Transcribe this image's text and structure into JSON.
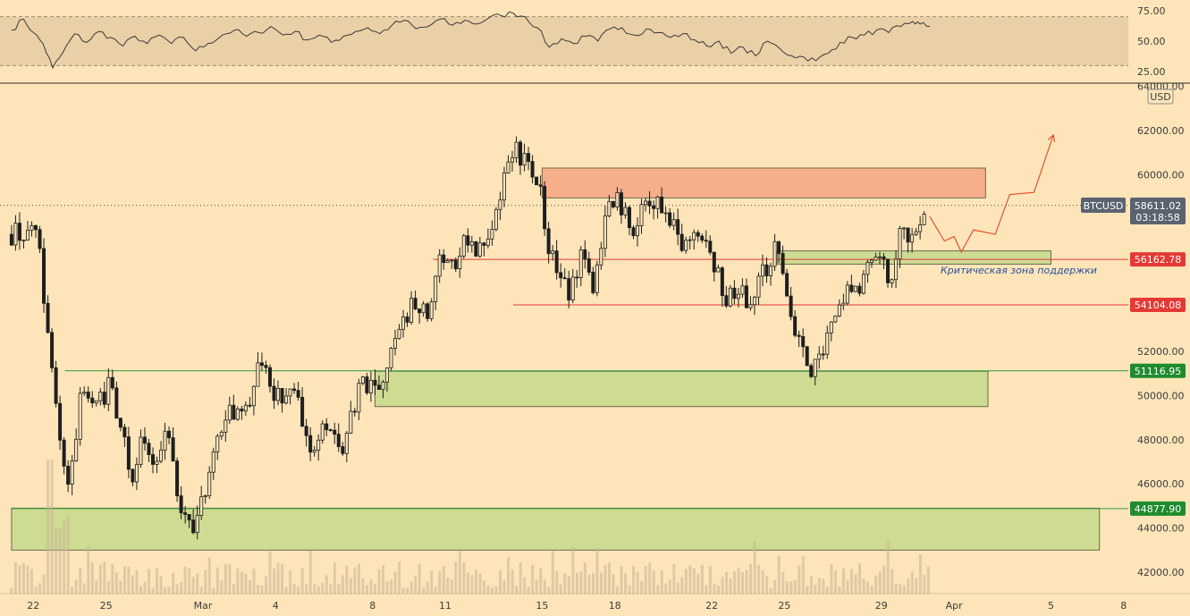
{
  "chart_data": {
    "type": "candlestick",
    "symbol": "BTCUSD",
    "currency": "USD",
    "countdown": "03:18:58",
    "last_price": "58611.02",
    "y_range": [
      41000,
      64000
    ],
    "y_ticks": [
      "64000.00",
      "62000.00",
      "60000.00",
      "58000.00",
      "56000.00",
      "54000.00",
      "52000.00",
      "50000.00",
      "48000.00",
      "46000.00",
      "44000.00",
      "42000.00"
    ],
    "x_ticks": [
      {
        "label": "22",
        "day": -7
      },
      {
        "label": "25",
        "day": -4
      },
      {
        "label": "Mar",
        "day": 0
      },
      {
        "label": "4",
        "day": 3
      },
      {
        "label": "8",
        "day": 7
      },
      {
        "label": "11",
        "day": 10
      },
      {
        "label": "15",
        "day": 14
      },
      {
        "label": "18",
        "day": 17
      },
      {
        "label": "22",
        "day": 21
      },
      {
        "label": "25",
        "day": 24
      },
      {
        "label": "29",
        "day": 28
      },
      {
        "label": "Apr",
        "day": 31
      },
      {
        "label": "5",
        "day": 35
      },
      {
        "label": "8",
        "day": 38
      }
    ],
    "price_tags": [
      {
        "value": 56162.78,
        "label": "56162.78",
        "color": "#e53935"
      },
      {
        "value": 54104.08,
        "label": "54104.08",
        "color": "#e53935"
      },
      {
        "value": 51116.95,
        "label": "51116.95",
        "color": "#1f8c2e"
      },
      {
        "value": 44877.9,
        "label": "44877.90",
        "color": "#1f8c2e"
      }
    ],
    "zones": [
      {
        "kind": "resistance",
        "from_day": 14.0,
        "to_day": 32.3,
        "low": 58950,
        "high": 60300,
        "color": "#f4a582"
      },
      {
        "kind": "support",
        "from_day": 23.7,
        "to_day": 35.0,
        "low": 55950,
        "high": 56550,
        "color": "#c5d98b"
      },
      {
        "kind": "support",
        "from_day": 7.1,
        "to_day": 32.4,
        "low": 49500,
        "high": 51100,
        "color": "#c5d98b"
      },
      {
        "kind": "support",
        "from_day": -7.9,
        "to_day": 37.0,
        "low": 43000,
        "high": 44900,
        "color": "#c5d98b"
      }
    ],
    "level_lines": [
      {
        "value": 56162.78,
        "from_day": 9.5,
        "color": "#e53935"
      },
      {
        "value": 54104.08,
        "from_day": 12.8,
        "color": "#e53935"
      },
      {
        "value": 51116.95,
        "from_day": -5.7,
        "color": "#2e9b3e"
      },
      {
        "value": 44877.9,
        "from_day": -7.9,
        "color": "#2e9b3e"
      }
    ],
    "annotation": "Критическая зона поддержки",
    "projection": [
      {
        "day": 30.0,
        "value": 58100
      },
      {
        "day": 30.6,
        "value": 57000
      },
      {
        "day": 31.0,
        "value": 57200
      },
      {
        "day": 31.3,
        "value": 56500
      },
      {
        "day": 31.8,
        "value": 57500
      },
      {
        "day": 32.7,
        "value": 57300
      },
      {
        "day": 33.3,
        "value": 59100
      },
      {
        "day": 34.3,
        "value": 59200
      },
      {
        "day": 35.1,
        "value": 61800
      }
    ],
    "anchors": [
      [
        -7.9,
        57300
      ],
      [
        -7.0,
        57700
      ],
      [
        -6.7,
        56000
      ],
      [
        -6.0,
        48500
      ],
      [
        -5.5,
        45600
      ],
      [
        -5.0,
        50800
      ],
      [
        -4.4,
        49500
      ],
      [
        -3.8,
        50500
      ],
      [
        -3.4,
        48700
      ],
      [
        -2.9,
        46300
      ],
      [
        -2.5,
        48100
      ],
      [
        -2.1,
        47000
      ],
      [
        -1.5,
        48200
      ],
      [
        -0.9,
        44700
      ],
      [
        -0.4,
        43700
      ],
      [
        0.3,
        46500
      ],
      [
        0.9,
        49400
      ],
      [
        1.6,
        48900
      ],
      [
        2.4,
        51500
      ],
      [
        3.0,
        49900
      ],
      [
        3.8,
        50200
      ],
      [
        4.4,
        47500
      ],
      [
        5.1,
        48800
      ],
      [
        5.8,
        47600
      ],
      [
        6.5,
        50500
      ],
      [
        7.3,
        50700
      ],
      [
        8.0,
        52600
      ],
      [
        8.7,
        54400
      ],
      [
        9.3,
        53600
      ],
      [
        9.8,
        56200
      ],
      [
        10.4,
        56000
      ],
      [
        10.8,
        57400
      ],
      [
        11.3,
        56400
      ],
      [
        11.9,
        57000
      ],
      [
        12.5,
        60100
      ],
      [
        12.9,
        61300
      ],
      [
        13.4,
        60200
      ],
      [
        13.9,
        59400
      ],
      [
        14.3,
        56500
      ],
      [
        14.7,
        55300
      ],
      [
        15.2,
        54700
      ],
      [
        15.6,
        56200
      ],
      [
        16.1,
        55000
      ],
      [
        16.6,
        58200
      ],
      [
        17.2,
        58800
      ],
      [
        17.7,
        57200
      ],
      [
        18.2,
        58900
      ],
      [
        18.8,
        58600
      ],
      [
        19.4,
        57600
      ],
      [
        20.0,
        56700
      ],
      [
        20.6,
        57400
      ],
      [
        21.1,
        56000
      ],
      [
        21.6,
        54200
      ],
      [
        22.1,
        54800
      ],
      [
        22.6,
        54200
      ],
      [
        23.1,
        55600
      ],
      [
        23.7,
        56700
      ],
      [
        24.2,
        53800
      ],
      [
        24.7,
        51900
      ],
      [
        25.2,
        51200
      ],
      [
        25.8,
        52600
      ],
      [
        26.4,
        54300
      ],
      [
        26.9,
        54800
      ],
      [
        27.5,
        55700
      ],
      [
        28.1,
        55900
      ],
      [
        28.4,
        55200
      ],
      [
        28.8,
        57600
      ],
      [
        29.2,
        57300
      ],
      [
        29.6,
        58000
      ],
      [
        29.9,
        58600
      ]
    ],
    "rsi": {
      "levels": [
        "75.00",
        "50.00",
        "25.00"
      ],
      "band_upper": 70,
      "band_lower": 30,
      "range": [
        20,
        80
      ],
      "anchors": [
        [
          -7.9,
          59
        ],
        [
          -7.4,
          68
        ],
        [
          -7.0,
          57
        ],
        [
          -6.6,
          48
        ],
        [
          -6.2,
          28
        ],
        [
          -5.8,
          40
        ],
        [
          -5.3,
          56
        ],
        [
          -4.8,
          49
        ],
        [
          -4.3,
          58
        ],
        [
          -3.8,
          53
        ],
        [
          -3.3,
          46
        ],
        [
          -2.8,
          54
        ],
        [
          -2.3,
          48
        ],
        [
          -1.8,
          55
        ],
        [
          -1.3,
          48
        ],
        [
          -0.8,
          53
        ],
        [
          -0.3,
          42
        ],
        [
          0.2,
          48
        ],
        [
          0.8,
          55
        ],
        [
          1.3,
          59
        ],
        [
          1.8,
          54
        ],
        [
          2.3,
          57
        ],
        [
          2.8,
          62
        ],
        [
          3.3,
          55
        ],
        [
          3.8,
          58
        ],
        [
          4.3,
          51
        ],
        [
          4.8,
          55
        ],
        [
          5.3,
          49
        ],
        [
          5.8,
          54
        ],
        [
          6.3,
          58
        ],
        [
          6.8,
          61
        ],
        [
          7.3,
          56
        ],
        [
          7.8,
          63
        ],
        [
          8.3,
          67
        ],
        [
          8.8,
          60
        ],
        [
          9.3,
          62
        ],
        [
          9.8,
          68
        ],
        [
          10.3,
          63
        ],
        [
          10.8,
          67
        ],
        [
          11.3,
          64
        ],
        [
          11.8,
          69
        ],
        [
          12.3,
          71
        ],
        [
          12.8,
          73
        ],
        [
          13.3,
          70
        ],
        [
          13.8,
          61
        ],
        [
          14.3,
          45
        ],
        [
          14.8,
          52
        ],
        [
          15.3,
          48
        ],
        [
          15.8,
          54
        ],
        [
          16.3,
          50
        ],
        [
          16.8,
          60
        ],
        [
          17.3,
          61
        ],
        [
          17.8,
          55
        ],
        [
          18.3,
          60
        ],
        [
          18.8,
          57
        ],
        [
          19.3,
          53
        ],
        [
          19.8,
          56
        ],
        [
          20.3,
          51
        ],
        [
          20.8,
          46
        ],
        [
          21.3,
          50
        ],
        [
          21.8,
          40
        ],
        [
          22.3,
          45
        ],
        [
          22.8,
          38
        ],
        [
          23.3,
          50
        ],
        [
          23.8,
          44
        ],
        [
          24.3,
          38
        ],
        [
          24.8,
          37
        ],
        [
          25.3,
          34
        ],
        [
          25.8,
          40
        ],
        [
          26.3,
          49
        ],
        [
          26.8,
          53
        ],
        [
          27.3,
          55
        ],
        [
          27.8,
          59
        ],
        [
          28.3,
          57
        ],
        [
          28.8,
          62
        ],
        [
          29.3,
          66
        ],
        [
          29.6,
          64
        ],
        [
          30.0,
          62
        ]
      ]
    }
  }
}
